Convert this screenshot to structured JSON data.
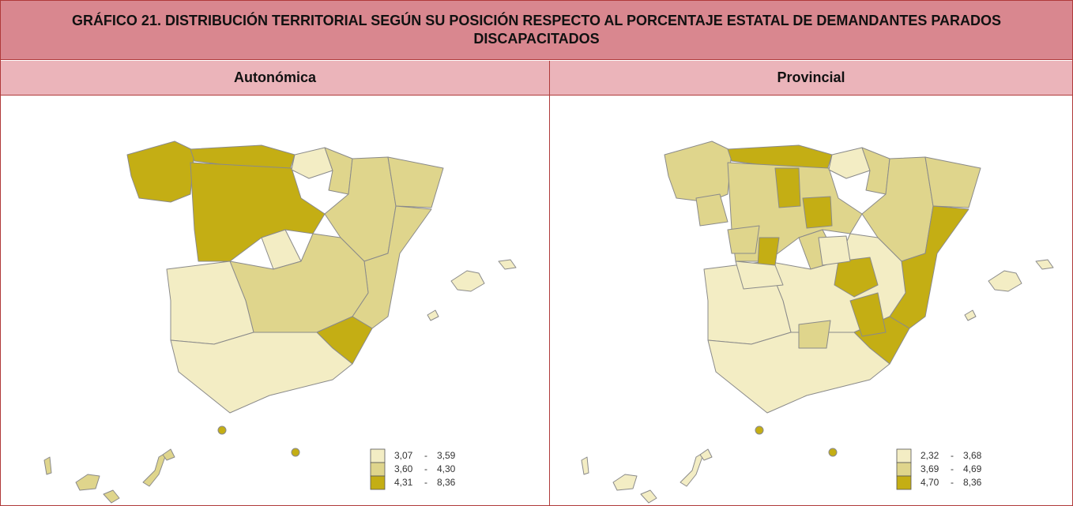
{
  "header": {
    "title": "GRÁFICO 21. DISTRIBUCIÓN TERRITORIAL SEGÚN SU POSICIÓN RESPECTO AL PORCENTAJE ESTATAL DE DEMANDANTES PARADOS DISCAPACITADOS"
  },
  "panels": [
    {
      "title": "Autonómica",
      "legend_separator": "-",
      "legend": [
        {
          "min": "3,07",
          "max": "3,59",
          "color": "#f3edc4"
        },
        {
          "min": "3,60",
          "max": "4,30",
          "color": "#dfd58c"
        },
        {
          "min": "4,31",
          "max": "8,36",
          "color": "#c4ae14"
        }
      ]
    },
    {
      "title": "Provincial",
      "legend_separator": "-",
      "legend": [
        {
          "min": "2,32",
          "max": "3,68",
          "color": "#f3edc4"
        },
        {
          "min": "3,69",
          "max": "4,69",
          "color": "#dfd58c"
        },
        {
          "min": "4,70",
          "max": "8,36",
          "color": "#c4ae14"
        }
      ]
    }
  ]
}
